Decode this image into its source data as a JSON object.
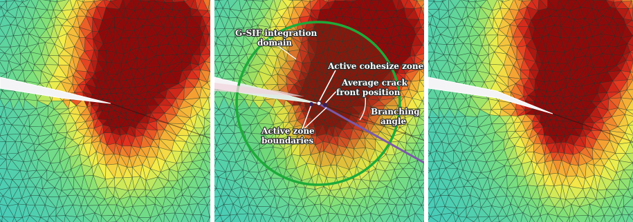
{
  "panels": [
    {
      "id": "left",
      "crack_tip": [
        160,
        150
      ],
      "crack_start_y": 118
    },
    {
      "id": "middle",
      "crack_tip": [
        150,
        150
      ],
      "crack_start_y": 118
    },
    {
      "id": "right",
      "crack_tip": [
        180,
        165
      ],
      "crack_start_y": 118
    }
  ],
  "colors": {
    "cyan": "#3ec8c4",
    "green": "#7ee07a",
    "yellow": "#f4ee4a",
    "orange": "#f5a132",
    "red": "#e2301e",
    "darkred": "#8e0a0a",
    "circle": "#1eaa3a",
    "branch": "#7b5aa8",
    "crack": "#f4f4f6"
  },
  "labels": {
    "gsif_line1": "G-SIF integration",
    "gsif_line2": "domain",
    "active_cz": "Active cohesize zone",
    "avg_line1": "Average crack",
    "avg_line2": "front position",
    "branch_line1": "Branching",
    "branch_line2": "angle",
    "az_line1": "Active zone",
    "az_line2": "boundaries"
  }
}
